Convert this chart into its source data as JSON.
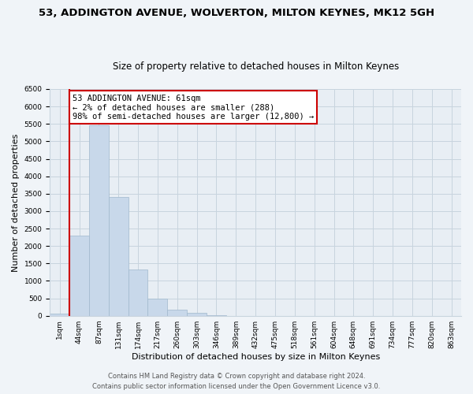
{
  "title": "53, ADDINGTON AVENUE, WOLVERTON, MILTON KEYNES, MK12 5GH",
  "subtitle": "Size of property relative to detached houses in Milton Keynes",
  "xlabel": "Distribution of detached houses by size in Milton Keynes",
  "ylabel": "Number of detached properties",
  "bar_labels": [
    "1sqm",
    "44sqm",
    "87sqm",
    "131sqm",
    "174sqm",
    "217sqm",
    "260sqm",
    "303sqm",
    "346sqm",
    "389sqm",
    "432sqm",
    "475sqm",
    "518sqm",
    "561sqm",
    "604sqm",
    "648sqm",
    "691sqm",
    "734sqm",
    "777sqm",
    "820sqm",
    "863sqm"
  ],
  "bar_values": [
    50,
    2300,
    5450,
    3400,
    1320,
    480,
    185,
    80,
    20,
    0,
    0,
    0,
    0,
    0,
    0,
    0,
    0,
    0,
    0,
    0,
    0
  ],
  "bar_color": "#c8d8ea",
  "bar_edge_color": "#a0b8cc",
  "vline_x_index": 1,
  "vline_color": "#cc0000",
  "annotation_line1": "53 ADDINGTON AVENUE: 61sqm",
  "annotation_line2": "← 2% of detached houses are smaller (288)",
  "annotation_line3": "98% of semi-detached houses are larger (12,800) →",
  "annotation_box_color": "white",
  "annotation_box_edge": "#cc0000",
  "ylim": [
    0,
    6500
  ],
  "yticks": [
    0,
    500,
    1000,
    1500,
    2000,
    2500,
    3000,
    3500,
    4000,
    4500,
    5000,
    5500,
    6000,
    6500
  ],
  "footer1": "Contains HM Land Registry data © Crown copyright and database right 2024.",
  "footer2": "Contains public sector information licensed under the Open Government Licence v3.0.",
  "bg_color": "#f0f4f8",
  "plot_bg_color": "#e8eef4",
  "grid_color": "#c8d4de",
  "title_fontsize": 9.5,
  "subtitle_fontsize": 8.5,
  "axis_label_fontsize": 8,
  "tick_fontsize": 6.5,
  "annotation_fontsize": 7.5,
  "footer_fontsize": 6
}
